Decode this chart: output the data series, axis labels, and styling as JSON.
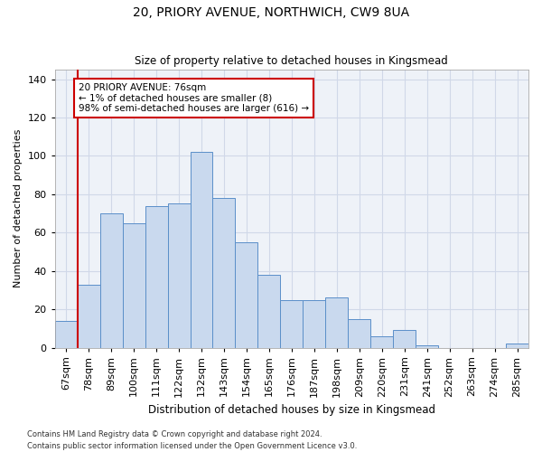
{
  "title": "20, PRIORY AVENUE, NORTHWICH, CW9 8UA",
  "subtitle": "Size of property relative to detached houses in Kingsmead",
  "xlabel": "Distribution of detached houses by size in Kingsmead",
  "ylabel": "Number of detached properties",
  "categories": [
    "67sqm",
    "78sqm",
    "89sqm",
    "100sqm",
    "111sqm",
    "122sqm",
    "132sqm",
    "143sqm",
    "154sqm",
    "165sqm",
    "176sqm",
    "187sqm",
    "198sqm",
    "209sqm",
    "220sqm",
    "231sqm",
    "241sqm",
    "252sqm",
    "263sqm",
    "274sqm",
    "285sqm"
  ],
  "values": [
    14,
    33,
    70,
    65,
    74,
    75,
    102,
    78,
    55,
    38,
    25,
    25,
    26,
    15,
    6,
    9,
    1,
    0,
    0,
    0,
    2
  ],
  "bar_color": "#c9d9ee",
  "bar_edge_color": "#5b8fc9",
  "grid_color": "#d0d8e8",
  "background_color": "#eef2f8",
  "annotation_line1": "20 PRIORY AVENUE: 76sqm",
  "annotation_line2": "← 1% of detached houses are smaller (8)",
  "annotation_line3": "98% of semi-detached houses are larger (616) →",
  "annotation_box_color": "#ffffff",
  "annotation_box_edge_color": "#cc0000",
  "redline_x": 0.5,
  "ylim": [
    0,
    145
  ],
  "yticks": [
    0,
    20,
    40,
    60,
    80,
    100,
    120,
    140
  ],
  "footer_line1": "Contains HM Land Registry data © Crown copyright and database right 2024.",
  "footer_line2": "Contains public sector information licensed under the Open Government Licence v3.0."
}
